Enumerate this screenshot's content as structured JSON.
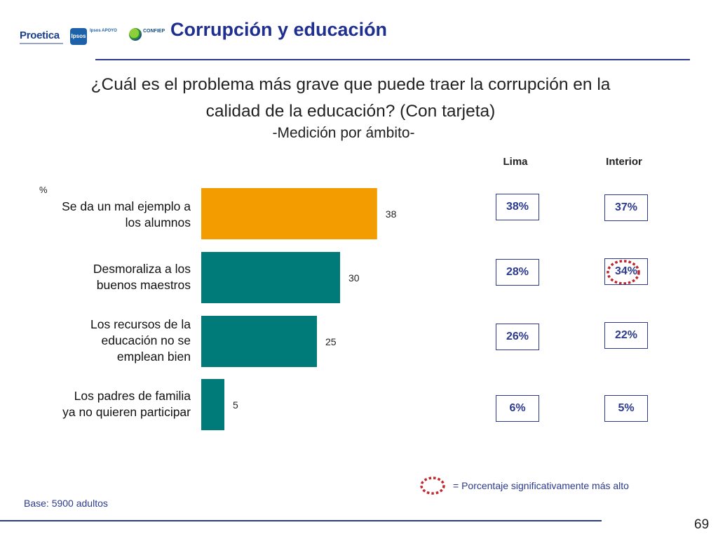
{
  "header": {
    "title": "Corrupción y educación",
    "logos": {
      "proetica": "Proetica",
      "ipsos": "Ipsos",
      "apoyo": "Ipsos APOYO",
      "confiep": "CONFIEP"
    }
  },
  "question": {
    "line1": "¿Cuál es el problema más grave que puede traer la corrupción en la",
    "line2": "calidad de la educación? (Con tarjeta)",
    "subtitle": "-Medición por ámbito-"
  },
  "columns": {
    "lima": "Lima",
    "interior": "Interior"
  },
  "unit": "%",
  "colors": {
    "highlight_bar": "#F39C00",
    "bar": "#007B7A",
    "box_border": "#2B3A8F",
    "ring": "#C0282D"
  },
  "chart_data": {
    "type": "bar",
    "orientation": "horizontal",
    "categories": [
      "Se da un mal ejemplo a los alumnos",
      "Desmoraliza a los buenos maestros",
      "Los recursos de la educación no se emplean bien",
      "Los padres de familia ya no quieren participar"
    ],
    "category_lines": [
      [
        "Se da un mal ejemplo a",
        "los alumnos"
      ],
      [
        "Desmoraliza a los",
        "buenos maestros"
      ],
      [
        "Los recursos de la",
        "educación no se",
        "emplean bien"
      ],
      [
        "Los padres de familia",
        "ya no quieren participar"
      ]
    ],
    "values": [
      38,
      30,
      25,
      5
    ],
    "value_labels": [
      "38",
      "30",
      "25",
      "5"
    ],
    "highlight_index": 0,
    "xlim": [
      0,
      40
    ],
    "lima": [
      "38%",
      "28%",
      "26%",
      "6%"
    ],
    "interior": [
      "37%",
      "34%",
      "22%",
      "5%"
    ],
    "significant": {
      "column": "interior",
      "index": 1
    }
  },
  "legend": {
    "significant": "= Porcentaje significativamente más alto"
  },
  "footer": {
    "base": "Base: 5900 adultos",
    "page": "69"
  }
}
